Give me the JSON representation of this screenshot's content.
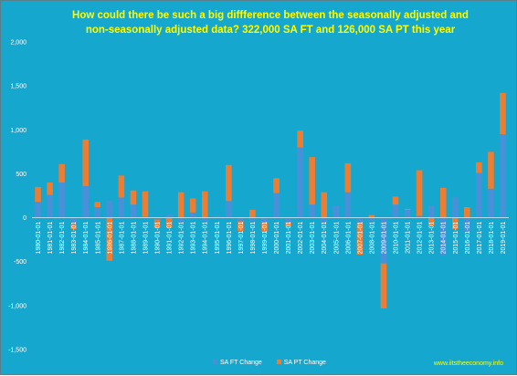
{
  "chart_data": {
    "type": "bar",
    "stacked": true,
    "title_lines": [
      "How could there be such a big diffference between the seasonally adjusted and",
      "non-seasonally adjusted data? 322,000 SA FT and 126,000 SA PT this year"
    ],
    "categories": [
      "1980-01-01",
      "1981-01-01",
      "1982-01-01",
      "1983-01-01",
      "1984-01-01",
      "1985-01-01",
      "1986-01-01",
      "1987-01-01",
      "1988-01-01",
      "1989-01-01",
      "1990-01-01",
      "1991-01-01",
      "1992-01-01",
      "1993-01-01",
      "1994-01-01",
      "1995-01-01",
      "1996-01-01",
      "1997-01-01",
      "1998-01-01",
      "1999-01-01",
      "2000-01-01",
      "2001-01-01",
      "2002-01-01",
      "2003-01-01",
      "2004-01-01",
      "2005-01-01",
      "2006-01-01",
      "2007-01-01",
      "2008-01-01",
      "2009-01-01",
      "2010-01-01",
      "2011-01-01",
      "2012-01-01",
      "2013-01-01",
      "2014-01-01",
      "2015-01-01",
      "2016-01-01",
      "2017-01-01",
      "2018-01-01",
      "2019-01-01"
    ],
    "series": [
      {
        "name": "SA FT Change",
        "color": "#4a90d9",
        "values": [
          180,
          260,
          400,
          -80,
          360,
          120,
          190,
          230,
          150,
          10,
          -20,
          40,
          -50,
          60,
          -40,
          20,
          190,
          -40,
          -40,
          -50,
          280,
          -50,
          800,
          150,
          -60,
          140,
          290,
          -60,
          -40,
          -520,
          150,
          90,
          20,
          140,
          -430,
          230,
          -150,
          510,
          330,
          950
        ]
      },
      {
        "name": "SA PT Change",
        "color": "#ef7d31",
        "values": [
          170,
          140,
          210,
          -50,
          530,
          60,
          -490,
          250,
          160,
          290,
          -90,
          -110,
          290,
          160,
          300,
          0,
          410,
          -110,
          90,
          -110,
          170,
          -50,
          190,
          540,
          290,
          0,
          330,
          -360,
          30,
          -510,
          90,
          10,
          520,
          -90,
          340,
          -130,
          120,
          120,
          420,
          470
        ]
      }
    ],
    "ylim": [
      -1500,
      2000
    ],
    "yticks": [
      -1500,
      -1000,
      -500,
      0,
      500,
      1000,
      1500,
      2000
    ],
    "ytick_labels": [
      "-1,500",
      "-1,000",
      "-500",
      "0",
      "500",
      "1,000",
      "1,500",
      "2,000"
    ],
    "grid": false,
    "legend_position": "bottom",
    "source_label": "www.iitstheeconomy.info"
  }
}
